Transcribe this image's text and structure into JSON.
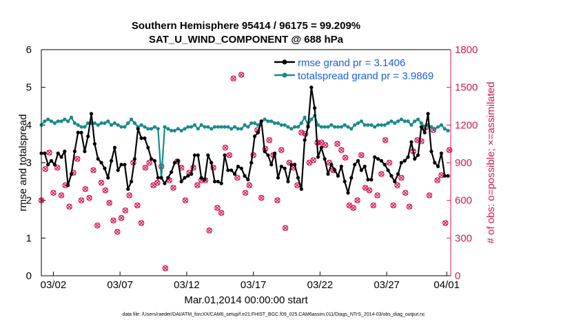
{
  "colors": {
    "rmse": "#000000",
    "spread": "#188a8a",
    "obs": "#d4145a",
    "legend_text": "#1a5fd6",
    "axis_left": "#000000",
    "axis_right": "#d4145a"
  },
  "chart_data": {
    "type": "line",
    "title": "Southern Hemisphere 95414 / 96175 = 99.209%",
    "subtitle": "SAT_U_WIND_COMPONENT @ 688 hPa",
    "xlabel": "Mar.01,2014 00:00:00 start",
    "ylabel": "rmse and totalspread",
    "y2label": "# of obs: o=possible; ×=assimilated",
    "footnote": "data file: /Users/raeder/DAI/ATM_forcXX/CAM6_setup/f.e21.FHIST_BGC.f09_025.CAM6assim.011/Diags_NTrS_2014-03/obs_diag_output.nc",
    "xlim": [
      0.6,
      31.3
    ],
    "ylim": [
      0,
      6
    ],
    "y2lim": [
      0,
      1800
    ],
    "x_ticks": [
      {
        "x": 1.5,
        "label": "03/02"
      },
      {
        "x": 6.5,
        "label": "03/07"
      },
      {
        "x": 11.5,
        "label": "03/12"
      },
      {
        "x": 16.5,
        "label": "03/17"
      },
      {
        "x": 21.5,
        "label": "03/22"
      },
      {
        "x": 26.5,
        "label": "03/27"
      },
      {
        "x": 31.0,
        "label": "04/01"
      }
    ],
    "y_ticks": [
      0,
      1,
      2,
      3,
      4,
      5,
      6
    ],
    "y_tick_labels": [
      "0",
      "1",
      "2",
      "3",
      "4",
      "5",
      "6"
    ],
    "y2_ticks": [
      0,
      300,
      600,
      900,
      1200,
      1500,
      1800
    ],
    "y2_tick_labels": [
      "0",
      "300",
      "600",
      "900",
      "1200",
      "1500",
      "1800"
    ],
    "legend": {
      "position": "top-right",
      "entries": [
        "rmse grand pr = 3.1406",
        "totalspread grand pr = 3.9869"
      ]
    },
    "series": [
      {
        "name": "rmse",
        "axis": "left",
        "x": [
          0.6,
          0.85,
          1.1,
          1.35,
          1.6,
          1.85,
          2.1,
          2.35,
          2.6,
          2.85,
          3.1,
          3.35,
          3.6,
          3.85,
          4.1,
          4.35,
          4.6,
          4.85,
          5.1,
          5.35,
          5.6,
          5.85,
          6.1,
          6.35,
          6.6,
          6.85,
          7.1,
          7.35,
          7.6,
          7.85,
          8.1,
          8.35,
          8.6,
          8.85,
          9.1,
          9.35,
          9.6,
          9.85,
          10.1,
          10.35,
          10.6,
          10.85,
          11.1,
          11.35,
          11.6,
          11.85,
          12.1,
          12.35,
          12.6,
          12.85,
          13.1,
          13.35,
          13.6,
          13.85,
          14.1,
          14.35,
          14.6,
          14.85,
          15.1,
          15.35,
          15.6,
          15.85,
          16.1,
          16.35,
          16.6,
          16.85,
          17.1,
          17.35,
          17.6,
          17.85,
          18.1,
          18.35,
          18.6,
          18.85,
          19.1,
          19.35,
          19.6,
          19.85,
          20.1,
          20.35,
          20.6,
          20.85,
          21.1,
          21.35,
          21.6,
          21.85,
          22.1,
          22.35,
          22.6,
          22.85,
          23.1,
          23.35,
          23.6,
          23.85,
          24.1,
          24.35,
          24.6,
          24.85,
          25.1,
          25.35,
          25.6,
          25.85,
          26.1,
          26.35,
          26.6,
          26.85,
          27.1,
          27.35,
          27.6,
          27.85,
          28.1,
          28.35,
          28.6,
          28.85,
          29.1,
          29.35,
          29.6,
          29.85,
          30.1,
          30.35,
          30.6,
          30.85,
          31.1
        ],
        "values": [
          3.25,
          3.25,
          2.95,
          3.05,
          2.95,
          3.25,
          3.15,
          3.3,
          2.4,
          2.7,
          3.3,
          3.8,
          3.8,
          3.3,
          3.7,
          4.3,
          3.5,
          3.1,
          3.0,
          2.85,
          2.6,
          3.05,
          3.4,
          2.8,
          2.95,
          2.95,
          2.3,
          2.5,
          3.1,
          3.9,
          3.65,
          3.65,
          3.4,
          3.1,
          3.05,
          2.6,
          2.6,
          2.45,
          2.6,
          2.75,
          3.0,
          3.05,
          2.5,
          2.6,
          2.65,
          2.7,
          3.2,
          3.2,
          2.6,
          2.55,
          3.2,
          3.0,
          2.5,
          2.5,
          2.45,
          3.2,
          2.8,
          2.8,
          2.7,
          2.9,
          2.85,
          2.65,
          2.55,
          3.0,
          3.7,
          3.8,
          4.1,
          3.3,
          3.2,
          2.95,
          3.25,
          2.6,
          2.9,
          2.85,
          2.5,
          2.95,
          2.95,
          2.6,
          2.3,
          3.6,
          3.95,
          5.0,
          4.45,
          3.15,
          3.4,
          3.1,
          2.7,
          2.95,
          2.8,
          2.65,
          2.9,
          2.5,
          2.2,
          2.6,
          2.95,
          3.05,
          2.8,
          2.9,
          2.55,
          2.55,
          3.15,
          3.1,
          3.05,
          2.95,
          2.8,
          2.65,
          2.5,
          2.7,
          3.0,
          3.05,
          3.15,
          3.55,
          3.1,
          3.2,
          3.95,
          3.8,
          4.3,
          3.3,
          3.0,
          2.9,
          3.25,
          2.65,
          2.65
        ]
      },
      {
        "name": "totalspread",
        "axis": "left",
        "x": [
          0.6,
          0.85,
          1.1,
          1.35,
          1.6,
          1.85,
          2.1,
          2.35,
          2.6,
          2.85,
          3.1,
          3.35,
          3.6,
          3.85,
          4.1,
          4.35,
          4.6,
          4.85,
          5.1,
          5.35,
          5.6,
          5.85,
          6.1,
          6.35,
          6.6,
          6.85,
          7.1,
          7.35,
          7.6,
          7.85,
          8.1,
          8.35,
          8.6,
          8.85,
          9.1,
          9.35,
          9.6,
          9.85,
          10.1,
          10.35,
          10.6,
          10.85,
          11.1,
          11.35,
          11.6,
          11.85,
          12.1,
          12.35,
          12.6,
          12.85,
          13.1,
          13.35,
          13.6,
          13.85,
          14.1,
          14.35,
          14.6,
          14.85,
          15.1,
          15.35,
          15.6,
          15.85,
          16.1,
          16.35,
          16.6,
          16.85,
          17.1,
          17.35,
          17.6,
          17.85,
          18.1,
          18.35,
          18.6,
          18.85,
          19.1,
          19.35,
          19.6,
          19.85,
          20.1,
          20.35,
          20.6,
          20.85,
          21.1,
          21.35,
          21.6,
          21.85,
          22.1,
          22.35,
          22.6,
          22.85,
          23.1,
          23.35,
          23.6,
          23.85,
          24.1,
          24.35,
          24.6,
          24.85,
          25.1,
          25.35,
          25.6,
          25.85,
          26.1,
          26.35,
          26.6,
          26.85,
          27.1,
          27.35,
          27.6,
          27.85,
          28.1,
          28.35,
          28.6,
          28.85,
          29.1,
          29.35,
          29.6,
          29.85,
          30.1,
          30.35,
          30.6,
          30.85,
          31.1
        ],
        "values": [
          4.0,
          4.1,
          4.15,
          4.1,
          4.05,
          4.1,
          4.1,
          4.15,
          4.1,
          4.2,
          4.05,
          4.0,
          3.95,
          3.95,
          4.05,
          4.05,
          4.05,
          4.0,
          4.05,
          4.05,
          4.1,
          4.0,
          4.05,
          4.0,
          3.95,
          3.95,
          4.05,
          4.15,
          4.05,
          3.95,
          4.0,
          3.95,
          3.9,
          3.9,
          3.95,
          3.9,
          2.6,
          3.95,
          3.9,
          3.85,
          3.85,
          3.9,
          3.85,
          3.9,
          3.95,
          3.95,
          4.0,
          3.9,
          4.0,
          3.95,
          3.95,
          3.9,
          3.95,
          3.95,
          3.95,
          3.95,
          3.95,
          3.9,
          3.95,
          3.9,
          3.9,
          4.0,
          3.95,
          4.05,
          4.05,
          4.0,
          4.1,
          4.15,
          4.1,
          4.1,
          4.05,
          4.05,
          4.0,
          4.0,
          3.95,
          3.9,
          3.95,
          3.95,
          4.05,
          4.2,
          4.0,
          4.15,
          4.25,
          4.0,
          3.95,
          3.95,
          3.95,
          4.0,
          3.95,
          3.95,
          3.95,
          4.0,
          3.95,
          3.9,
          4.0,
          4.05,
          4.1,
          4.0,
          4.0,
          4.0,
          3.95,
          4.0,
          4.0,
          4.0,
          4.05,
          4.1,
          4.05,
          4.1,
          4.15,
          4.1,
          4.1,
          4.0,
          4.1,
          4.15,
          4.05,
          3.95,
          4.0,
          3.95,
          3.9,
          3.95,
          4.0,
          3.9,
          3.85
        ]
      },
      {
        "name": "obs possible",
        "axis": "right",
        "marker": "o",
        "x": [
          0.6,
          0.9,
          1.2,
          1.5,
          1.8,
          2.1,
          2.4,
          2.7,
          3.0,
          3.3,
          3.6,
          3.9,
          4.2,
          4.5,
          4.8,
          5.1,
          5.4,
          5.7,
          6.0,
          6.3,
          6.6,
          6.9,
          7.2,
          7.5,
          7.8,
          8.1,
          8.4,
          8.7,
          9.0,
          9.3,
          9.6,
          9.9,
          10.2,
          10.5,
          10.8,
          11.1,
          11.4,
          11.7,
          12.0,
          12.3,
          12.6,
          12.9,
          13.2,
          13.5,
          13.8,
          14.1,
          14.4,
          14.7,
          15.0,
          15.3,
          15.6,
          15.9,
          16.2,
          16.5,
          16.8,
          17.1,
          17.4,
          17.7,
          18.0,
          18.3,
          18.6,
          18.9,
          19.2,
          19.5,
          19.8,
          20.1,
          20.4,
          20.7,
          21.0,
          21.3,
          21.6,
          21.9,
          22.2,
          22.5,
          22.8,
          23.1,
          23.4,
          23.7,
          24.0,
          24.3,
          24.6,
          24.9,
          25.2,
          25.5,
          25.8,
          26.1,
          26.4,
          26.7,
          27.0,
          27.3,
          27.6,
          27.9,
          28.2,
          28.5,
          28.8,
          29.1,
          29.4,
          29.7,
          30.0,
          30.3,
          30.6,
          30.9,
          31.2
        ],
        "values": [
          600,
          850,
          980,
          660,
          860,
          640,
          720,
          550,
          820,
          930,
          600,
          690,
          620,
          840,
          400,
          740,
          680,
          580,
          440,
          350,
          460,
          520,
          640,
          900,
          560,
          420,
          860,
          900,
          720,
          740,
          870,
          60,
          760,
          700,
          910,
          860,
          600,
          820,
          860,
          720,
          760,
          760,
          360,
          860,
          540,
          500,
          1020,
          960,
          1570,
          780,
          1600,
          660,
          720,
          960,
          1160,
          620,
          1010,
          1080,
          960,
          600,
          1000,
          380,
          900,
          860,
          720,
          1140,
          1130,
          900,
          920,
          1060,
          1060,
          1040,
          900,
          840,
          1050,
          1000,
          940,
          560,
          540,
          600,
          960,
          700,
          680,
          560,
          640,
          810,
          1080,
          900,
          560,
          720,
          780,
          660,
          550,
          990,
          1080,
          1070,
          1180,
          640,
          1160,
          760,
          800,
          420,
          1000
        ]
      },
      {
        "name": "obs assimilated",
        "axis": "right",
        "marker": "x",
        "x": [
          0.6,
          0.9,
          1.2,
          1.5,
          1.8,
          2.1,
          2.4,
          2.7,
          3.0,
          3.3,
          3.6,
          3.9,
          4.2,
          4.5,
          4.8,
          5.1,
          5.4,
          5.7,
          6.0,
          6.3,
          6.6,
          6.9,
          7.2,
          7.5,
          7.8,
          8.1,
          8.4,
          8.7,
          9.0,
          9.3,
          9.6,
          9.9,
          10.2,
          10.5,
          10.8,
          11.1,
          11.4,
          11.7,
          12.0,
          12.3,
          12.6,
          12.9,
          13.2,
          13.5,
          13.8,
          14.1,
          14.4,
          14.7,
          15.0,
          15.3,
          15.6,
          15.9,
          16.2,
          16.5,
          16.8,
          17.1,
          17.4,
          17.7,
          18.0,
          18.3,
          18.6,
          18.9,
          19.2,
          19.5,
          19.8,
          20.1,
          20.4,
          20.7,
          21.0,
          21.3,
          21.6,
          21.9,
          22.2,
          22.5,
          22.8,
          23.1,
          23.4,
          23.7,
          24.0,
          24.3,
          24.6,
          24.9,
          25.2,
          25.5,
          25.8,
          26.1,
          26.4,
          26.7,
          27.0,
          27.3,
          27.6,
          27.9,
          28.2,
          28.5,
          28.8,
          29.1,
          29.4,
          29.7,
          30.0,
          30.3,
          30.6,
          30.9,
          31.2
        ],
        "values": [
          600,
          850,
          980,
          660,
          860,
          640,
          720,
          550,
          820,
          930,
          600,
          690,
          620,
          840,
          400,
          740,
          680,
          580,
          440,
          350,
          460,
          520,
          640,
          900,
          560,
          420,
          860,
          900,
          720,
          740,
          870,
          60,
          760,
          700,
          910,
          860,
          600,
          820,
          860,
          720,
          760,
          760,
          360,
          860,
          540,
          500,
          1020,
          960,
          1570,
          780,
          1600,
          660,
          720,
          960,
          1160,
          620,
          1010,
          1080,
          960,
          600,
          1000,
          380,
          900,
          860,
          720,
          1140,
          1130,
          900,
          920,
          1060,
          1060,
          1040,
          900,
          840,
          1050,
          1000,
          940,
          560,
          540,
          600,
          960,
          700,
          680,
          560,
          640,
          810,
          1080,
          900,
          560,
          720,
          780,
          660,
          550,
          990,
          1080,
          1070,
          1180,
          640,
          1160,
          760,
          800,
          420,
          1000
        ]
      }
    ]
  }
}
